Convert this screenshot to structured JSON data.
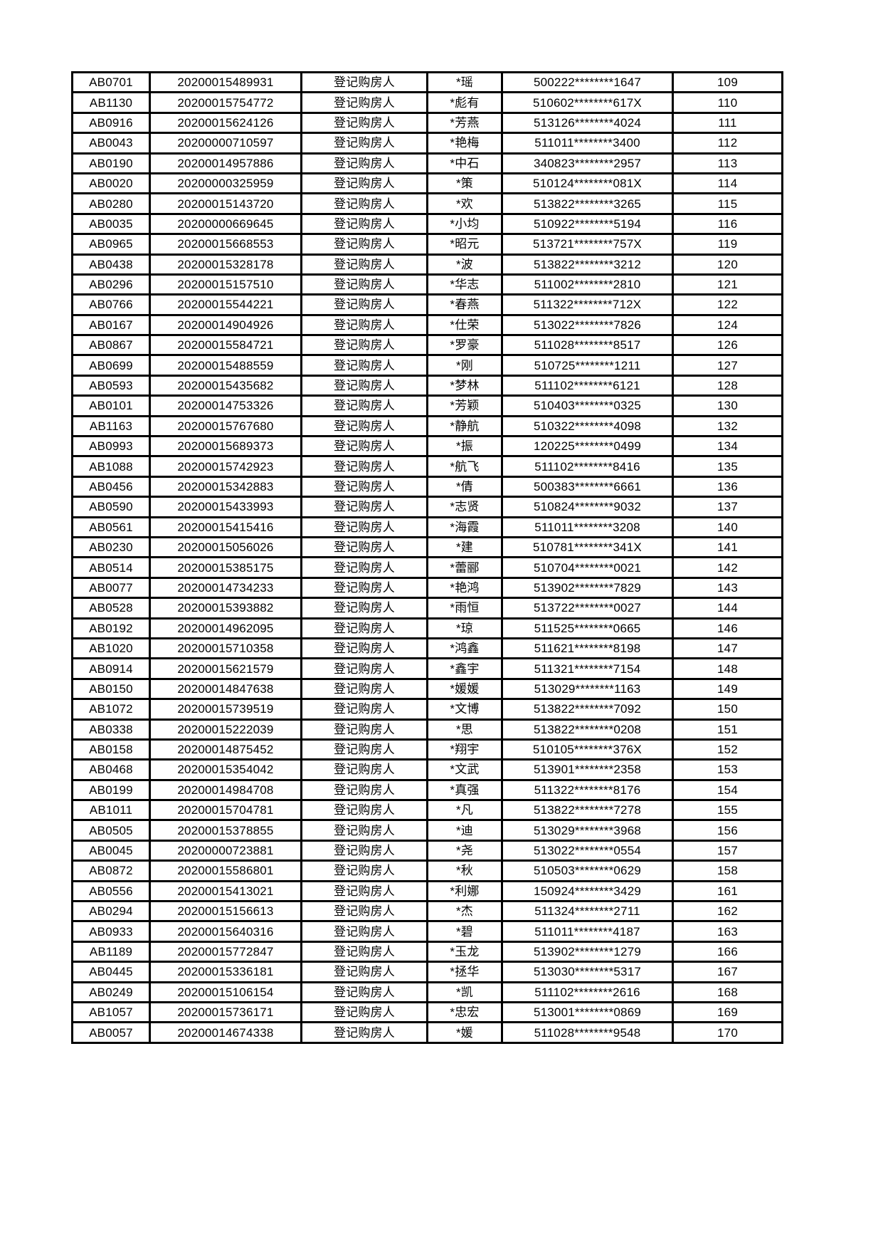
{
  "page": {
    "background_color": "#ffffff",
    "type": "printed-table-page"
  },
  "table": {
    "grid_color": "#000000",
    "columns": [
      {
        "key": 0,
        "name": "applicant-code"
      },
      {
        "key": 1,
        "name": "application-number"
      },
      {
        "key": 2,
        "name": "registrant-type"
      },
      {
        "key": 3,
        "name": "masked-name"
      },
      {
        "key": 4,
        "name": "masked-id-number"
      },
      {
        "key": 5,
        "name": "sequence-number"
      }
    ],
    "rows": [
      [
        "AB0701",
        "20200015489931",
        "登记购房人",
        "*瑶",
        "500222********1647",
        "109"
      ],
      [
        "AB1130",
        "20200015754772",
        "登记购房人",
        "*彪有",
        "510602********617X",
        "110"
      ],
      [
        "AB0916",
        "20200015624126",
        "登记购房人",
        "*芳燕",
        "513126********4024",
        "111"
      ],
      [
        "AB0043",
        "20200000710597",
        "登记购房人",
        "*艳梅",
        "511011********3400",
        "112"
      ],
      [
        "AB0190",
        "20200014957886",
        "登记购房人",
        "*中石",
        "340823********2957",
        "113"
      ],
      [
        "AB0020",
        "20200000325959",
        "登记购房人",
        "*策",
        "510124********081X",
        "114"
      ],
      [
        "AB0280",
        "20200015143720",
        "登记购房人",
        "*欢",
        "513822********3265",
        "115"
      ],
      [
        "AB0035",
        "20200000669645",
        "登记购房人",
        "*小均",
        "510922********5194",
        "116"
      ],
      [
        "AB0965",
        "20200015668553",
        "登记购房人",
        "*昭元",
        "513721********757X",
        "119"
      ],
      [
        "AB0438",
        "20200015328178",
        "登记购房人",
        "*波",
        "513822********3212",
        "120"
      ],
      [
        "AB0296",
        "20200015157510",
        "登记购房人",
        "*华志",
        "511002********2810",
        "121"
      ],
      [
        "AB0766",
        "20200015544221",
        "登记购房人",
        "*春燕",
        "511322********712X",
        "122"
      ],
      [
        "AB0167",
        "20200014904926",
        "登记购房人",
        "*仕荣",
        "513022********7826",
        "124"
      ],
      [
        "AB0867",
        "20200015584721",
        "登记购房人",
        "*罗豪",
        "511028********8517",
        "126"
      ],
      [
        "AB0699",
        "20200015488559",
        "登记购房人",
        "*刚",
        "510725********1211",
        "127"
      ],
      [
        "AB0593",
        "20200015435682",
        "登记购房人",
        "*梦林",
        "511102********6121",
        "128"
      ],
      [
        "AB0101",
        "20200014753326",
        "登记购房人",
        "*芳颖",
        "510403********0325",
        "130"
      ],
      [
        "AB1163",
        "20200015767680",
        "登记购房人",
        "*静航",
        "510322********4098",
        "132"
      ],
      [
        "AB0993",
        "20200015689373",
        "登记购房人",
        "*振",
        "120225********0499",
        "134"
      ],
      [
        "AB1088",
        "20200015742923",
        "登记购房人",
        "*航飞",
        "511102********8416",
        "135"
      ],
      [
        "AB0456",
        "20200015342883",
        "登记购房人",
        "*倩",
        "500383********6661",
        "136"
      ],
      [
        "AB0590",
        "20200015433993",
        "登记购房人",
        "*志贤",
        "510824********9032",
        "137"
      ],
      [
        "AB0561",
        "20200015415416",
        "登记购房人",
        "*海霞",
        "511011********3208",
        "140"
      ],
      [
        "AB0230",
        "20200015056026",
        "登记购房人",
        "*建",
        "510781********341X",
        "141"
      ],
      [
        "AB0514",
        "20200015385175",
        "登记购房人",
        "*蕾郦",
        "510704********0021",
        "142"
      ],
      [
        "AB0077",
        "20200014734233",
        "登记购房人",
        "*艳鸿",
        "513902********7829",
        "143"
      ],
      [
        "AB0528",
        "20200015393882",
        "登记购房人",
        "*雨恒",
        "513722********0027",
        "144"
      ],
      [
        "AB0192",
        "20200014962095",
        "登记购房人",
        "*琼",
        "511525********0665",
        "146"
      ],
      [
        "AB1020",
        "20200015710358",
        "登记购房人",
        "*鸿鑫",
        "511621********8198",
        "147"
      ],
      [
        "AB0914",
        "20200015621579",
        "登记购房人",
        "*鑫宇",
        "511321********7154",
        "148"
      ],
      [
        "AB0150",
        "20200014847638",
        "登记购房人",
        "*媛媛",
        "513029********1163",
        "149"
      ],
      [
        "AB1072",
        "20200015739519",
        "登记购房人",
        "*文博",
        "513822********7092",
        "150"
      ],
      [
        "AB0338",
        "20200015222039",
        "登记购房人",
        "*思",
        "513822********0208",
        "151"
      ],
      [
        "AB0158",
        "20200014875452",
        "登记购房人",
        "*翔宇",
        "510105********376X",
        "152"
      ],
      [
        "AB0468",
        "20200015354042",
        "登记购房人",
        "*文武",
        "513901********2358",
        "153"
      ],
      [
        "AB0199",
        "20200014984708",
        "登记购房人",
        "*真强",
        "511322********8176",
        "154"
      ],
      [
        "AB1011",
        "20200015704781",
        "登记购房人",
        "*凡",
        "513822********7278",
        "155"
      ],
      [
        "AB0505",
        "20200015378855",
        "登记购房人",
        "*迪",
        "513029********3968",
        "156"
      ],
      [
        "AB0045",
        "20200000723881",
        "登记购房人",
        "*尧",
        "513022********0554",
        "157"
      ],
      [
        "AB0872",
        "20200015586801",
        "登记购房人",
        "*秋",
        "510503********0629",
        "158"
      ],
      [
        "AB0556",
        "20200015413021",
        "登记购房人",
        "*利娜",
        "150924********3429",
        "161"
      ],
      [
        "AB0294",
        "20200015156613",
        "登记购房人",
        "*杰",
        "511324********2711",
        "162"
      ],
      [
        "AB0933",
        "20200015640316",
        "登记购房人",
        "*碧",
        "511011********4187",
        "163"
      ],
      [
        "AB1189",
        "20200015772847",
        "登记购房人",
        "*玉龙",
        "513902********1279",
        "166"
      ],
      [
        "AB0445",
        "20200015336181",
        "登记购房人",
        "*拯华",
        "513030********5317",
        "167"
      ],
      [
        "AB0249",
        "20200015106154",
        "登记购房人",
        "*凯",
        "511102********2616",
        "168"
      ],
      [
        "AB1057",
        "20200015736171",
        "登记购房人",
        "*忠宏",
        "513001********0869",
        "169"
      ],
      [
        "AB0057",
        "20200014674338",
        "登记购房人",
        "*媛",
        "511028********9548",
        "170"
      ]
    ]
  }
}
